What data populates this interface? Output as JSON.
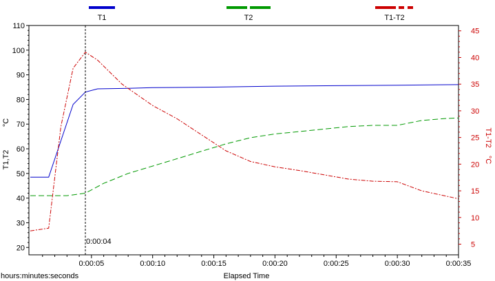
{
  "chart_data": {
    "type": "line",
    "title": "",
    "xlabel": "Elapsed Time",
    "x_unit_label": "hours:minutes:seconds",
    "xlim": [
      0,
      35
    ],
    "x_ticks": [
      5,
      10,
      15,
      20,
      25,
      30,
      35
    ],
    "x_tick_labels": [
      "0:00:05",
      "0:00:10",
      "0:00:15",
      "0:00:20",
      "0:00:25",
      "0:00:30",
      "0:00:35"
    ],
    "y_left": {
      "label_main": "T1,T2",
      "unit": "°C",
      "ylim": [
        17,
        110
      ],
      "ticks": [
        20,
        30,
        40,
        50,
        60,
        70,
        80,
        90,
        100,
        110
      ]
    },
    "y_right": {
      "label_main": "T1-T2",
      "unit": "°C",
      "ylim": [
        3,
        46
      ],
      "ticks": [
        5,
        10,
        15,
        20,
        25,
        30,
        35,
        40,
        45
      ]
    },
    "cursor": {
      "x": 4.5,
      "label": "0:00:04"
    },
    "legend_position": "top",
    "series": [
      {
        "name": "T1",
        "axis": "left",
        "color": "#0000cc",
        "style": "solid",
        "x": [
          0,
          1.5,
          3.5,
          4.5,
          5.5,
          8,
          10,
          15,
          20,
          25,
          30,
          35
        ],
        "y": [
          48.5,
          48.5,
          78,
          83,
          84.3,
          84.5,
          84.8,
          85,
          85.4,
          85.6,
          85.8,
          86
        ]
      },
      {
        "name": "T2",
        "axis": "left",
        "color": "#009900",
        "style": "dashed",
        "x": [
          0,
          3,
          4.5,
          6,
          8,
          10,
          12,
          14,
          16,
          18,
          20,
          22,
          24,
          26,
          28,
          30,
          32,
          34,
          35
        ],
        "y": [
          41,
          41,
          42,
          46,
          50,
          53,
          56,
          59,
          62,
          64.5,
          66,
          67,
          68,
          69,
          69.5,
          69.5,
          71.5,
          72.3,
          72.5
        ]
      },
      {
        "name": "T1-T2",
        "axis": "right",
        "color": "#cc0000",
        "style": "dashdot",
        "x": [
          0,
          1.5,
          2.5,
          3.5,
          4.5,
          5.5,
          7.5,
          10,
          12,
          14,
          16,
          18,
          20,
          22,
          24,
          26,
          28,
          30,
          32,
          34,
          35
        ],
        "y": [
          7.5,
          8,
          27,
          38,
          41,
          39.5,
          35,
          31,
          28.5,
          25.5,
          22.5,
          20.5,
          19.5,
          18.8,
          18,
          17.2,
          16.8,
          16.7,
          15,
          14,
          13.5
        ]
      }
    ]
  }
}
